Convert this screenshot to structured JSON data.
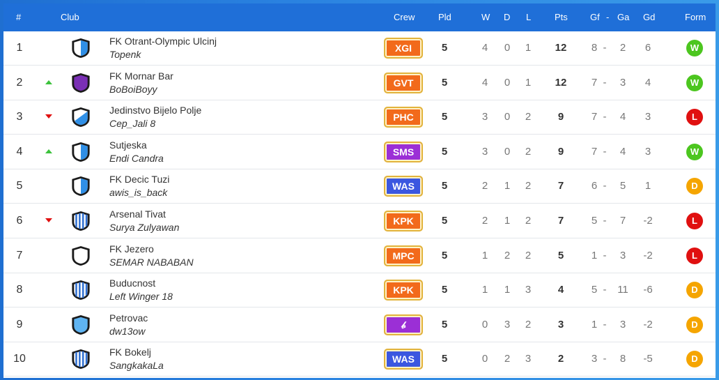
{
  "headers": {
    "rank": "#",
    "club": "Club",
    "crew": "Crew",
    "pld": "Pld",
    "w": "W",
    "d": "D",
    "l": "L",
    "pts": "Pts",
    "gf": "Gf",
    "sep": "-",
    "ga": "Ga",
    "gd": "Gd",
    "form": "Form"
  },
  "colors": {
    "header_bg": "#1f6fd8",
    "crew_orange": "#f26a1b",
    "crew_purple": "#9b2fd6",
    "crew_blue": "#3b57e0",
    "form_win": "#4cc61f",
    "form_loss": "#e01010",
    "form_draw": "#f5a500",
    "arrow_up": "#3cc23c",
    "arrow_down": "#e01010"
  },
  "rows": [
    {
      "rank": "1",
      "move": "none",
      "crest": "shield-blue",
      "club": "FK Otrant-Olympic Ulcinj",
      "manager": "Topenk",
      "crew": "XGI",
      "crew_color": "orange",
      "pld": "5",
      "w": "4",
      "d": "0",
      "l": "1",
      "pts": "12",
      "gf": "8",
      "sep": "-",
      "ga": "2",
      "gd": "6",
      "form": "W"
    },
    {
      "rank": "2",
      "move": "up",
      "crest": "shield-purple",
      "club": "FK Mornar Bar",
      "manager": "BoBoiBoyy",
      "crew": "GVT",
      "crew_color": "orange",
      "pld": "5",
      "w": "4",
      "d": "0",
      "l": "1",
      "pts": "12",
      "gf": "7",
      "sep": "-",
      "ga": "3",
      "gd": "4",
      "form": "W"
    },
    {
      "rank": "3",
      "move": "down",
      "crest": "shield-diagonal",
      "club": "Jedinstvo Bijelo Polje",
      "manager": "Cep_Jali 8",
      "crew": "PHC",
      "crew_color": "orange",
      "pld": "5",
      "w": "3",
      "d": "0",
      "l": "2",
      "pts": "9",
      "gf": "7",
      "sep": "-",
      "ga": "4",
      "gd": "3",
      "form": "L"
    },
    {
      "rank": "4",
      "move": "up",
      "crest": "shield-blue",
      "club": "Sutjeska",
      "manager": "Endi Candra",
      "crew": "SMS",
      "crew_color": "purple",
      "pld": "5",
      "w": "3",
      "d": "0",
      "l": "2",
      "pts": "9",
      "gf": "7",
      "sep": "-",
      "ga": "4",
      "gd": "3",
      "form": "W"
    },
    {
      "rank": "5",
      "move": "none",
      "crest": "shield-blue",
      "club": "FK Decic Tuzi",
      "manager": "awis_is_back",
      "crew": "WAS",
      "crew_color": "blue",
      "pld": "5",
      "w": "2",
      "d": "1",
      "l": "2",
      "pts": "7",
      "gf": "6",
      "sep": "-",
      "ga": "5",
      "gd": "1",
      "form": "D"
    },
    {
      "rank": "6",
      "move": "down",
      "crest": "shield-stripes",
      "club": "Arsenal Tivat",
      "manager": "Surya Zulyawan",
      "crew": "KPK",
      "crew_color": "orange",
      "pld": "5",
      "w": "2",
      "d": "1",
      "l": "2",
      "pts": "7",
      "gf": "5",
      "sep": "-",
      "ga": "7",
      "gd": "-2",
      "form": "L"
    },
    {
      "rank": "7",
      "move": "none",
      "crest": "shield-white",
      "club": "FK Jezero",
      "manager": "SEMAR NABABAN",
      "crew": "MPC",
      "crew_color": "orange",
      "pld": "5",
      "w": "1",
      "d": "2",
      "l": "2",
      "pts": "5",
      "gf": "1",
      "sep": "-",
      "ga": "3",
      "gd": "-2",
      "form": "L"
    },
    {
      "rank": "8",
      "move": "none",
      "crest": "shield-stripes",
      "club": "Buducnost",
      "manager": "Left Winger 18",
      "crew": "KPK",
      "crew_color": "orange",
      "pld": "5",
      "w": "1",
      "d": "1",
      "l": "3",
      "pts": "4",
      "gf": "5",
      "sep": "-",
      "ga": "11",
      "gd": "-6",
      "form": "D"
    },
    {
      "rank": "9",
      "move": "none",
      "crest": "shield-lightblue",
      "club": "Petrovac",
      "manager": "dw13ow",
      "crew": "𝒷",
      "crew_color": "purple",
      "pld": "5",
      "w": "0",
      "d": "3",
      "l": "2",
      "pts": "3",
      "gf": "1",
      "sep": "-",
      "ga": "3",
      "gd": "-2",
      "form": "D"
    },
    {
      "rank": "10",
      "move": "none",
      "crest": "shield-stripes",
      "club": "FK Bokelj",
      "manager": "SangkakaLa",
      "crew": "WAS",
      "crew_color": "blue",
      "pld": "5",
      "w": "0",
      "d": "2",
      "l": "3",
      "pts": "2",
      "gf": "3",
      "sep": "-",
      "ga": "8",
      "gd": "-5",
      "form": "D"
    }
  ]
}
